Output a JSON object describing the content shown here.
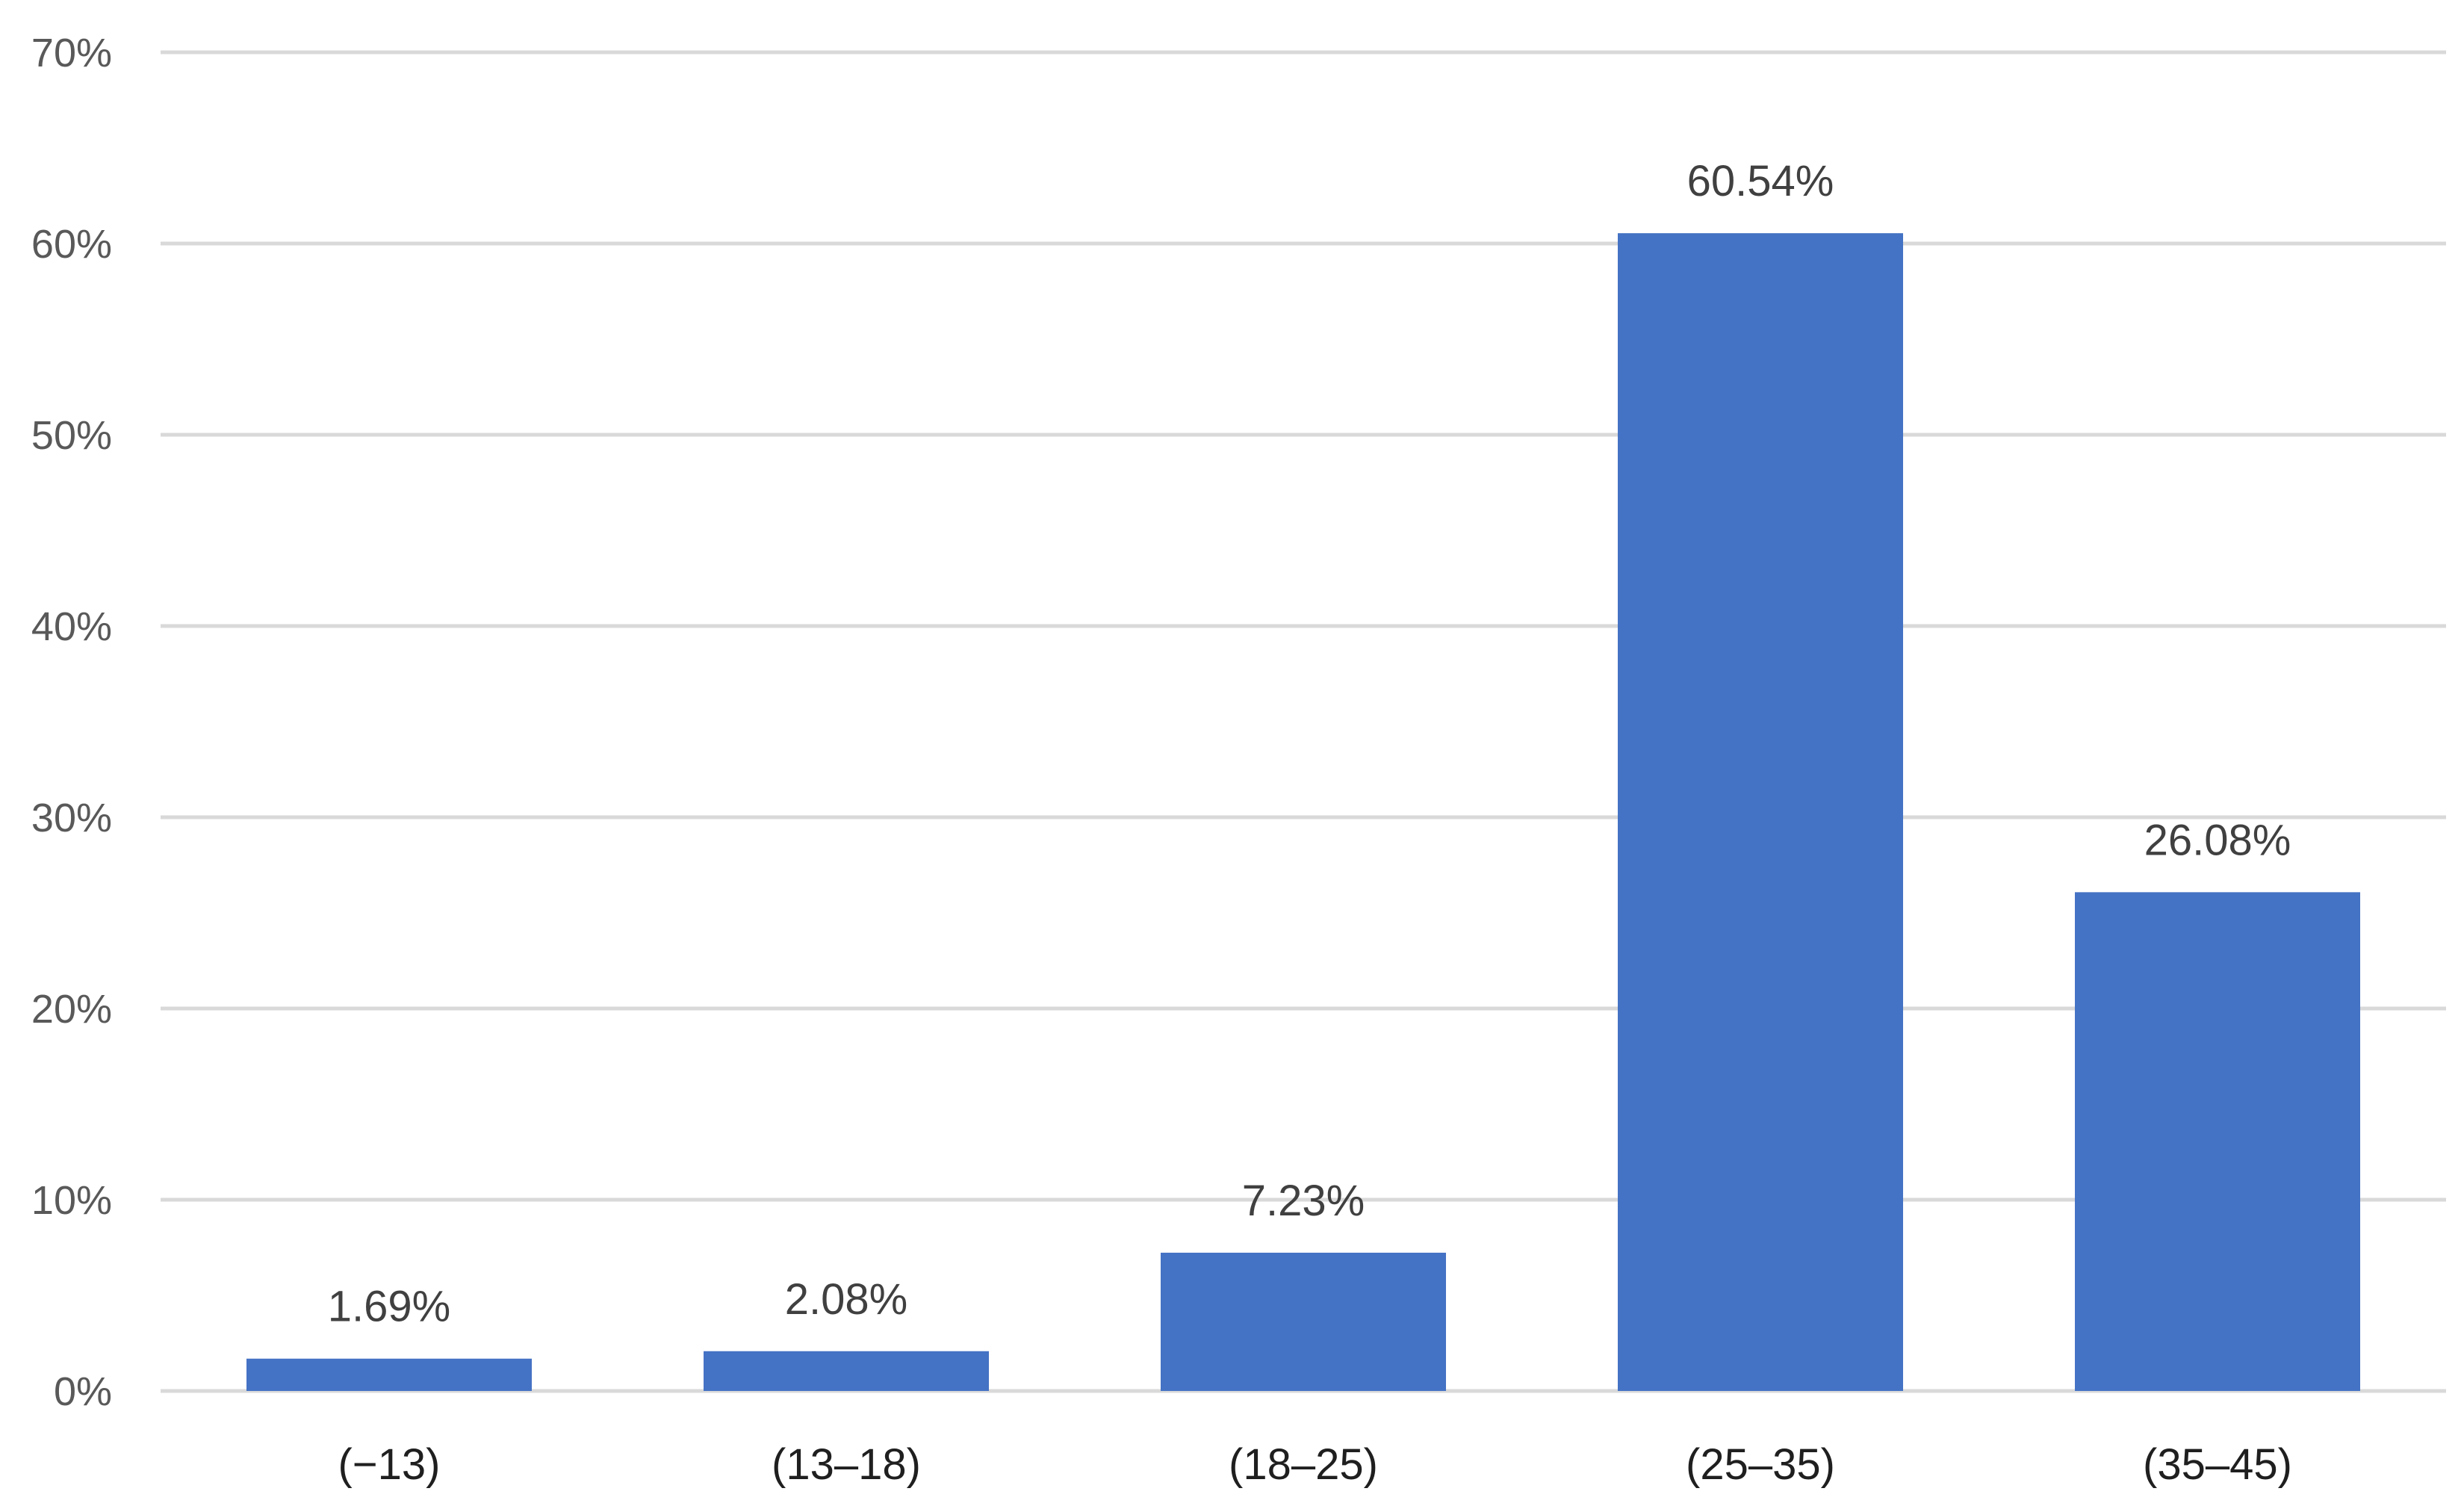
{
  "chart_data": {
    "type": "bar",
    "title": "",
    "xlabel": "",
    "ylabel": "",
    "categories": [
      "(−13)",
      "(13–18)",
      "(18–25)",
      "(25–35)",
      "(35–45)"
    ],
    "values": [
      1.69,
      2.08,
      7.23,
      60.54,
      26.08
    ],
    "value_labels": [
      "1.69%",
      "2.08%",
      "7.23%",
      "60.54%",
      "26.08%"
    ],
    "ylim": [
      0,
      70
    ],
    "yticks": [
      0,
      10,
      20,
      30,
      40,
      50,
      60,
      70
    ],
    "ytick_labels": [
      "0%",
      "10%",
      "20%",
      "30%",
      "40%",
      "50%",
      "60%",
      "70%"
    ],
    "grid": true,
    "legend": "none",
    "bar_color": "#4472c4"
  }
}
